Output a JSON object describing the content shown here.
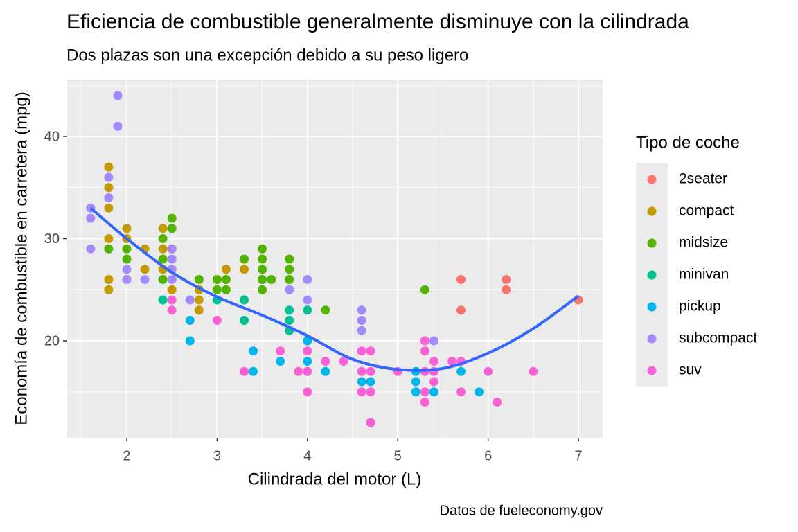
{
  "chart_data": {
    "type": "scatter",
    "title": "Eficiencia de combustible generalmente disminuye con la cilindrada",
    "subtitle": "Dos plazas son una excepción debido a su peso ligero",
    "caption": "Datos de fueleconomy.gov",
    "x_label": "Cilindrada del motor (L)",
    "y_label": "Economía de combustible en carretera (mpg)",
    "legend_title": "Tipo de coche",
    "legend_position": "right",
    "grid": true,
    "xlim": [
      1.333,
      7.268
    ],
    "ylim": [
      10.51,
      45.56
    ],
    "xticks": [
      2,
      3,
      4,
      5,
      6,
      7
    ],
    "yticks": [
      20,
      30,
      40
    ],
    "series": [
      {
        "name": "2seater",
        "color": "#F8766D",
        "x": [
          5.7,
          5.7,
          6.2,
          6.2,
          7.0
        ],
        "values": [
          26,
          23,
          26,
          25,
          24
        ]
      },
      {
        "name": "compact",
        "color": "#C49A00",
        "x": [
          1.8,
          1.8,
          1.8,
          1.8,
          1.8,
          1.8,
          2.0,
          2.0,
          2.0,
          2.2,
          2.2,
          2.4,
          2.4,
          2.4,
          2.5,
          2.5,
          2.5,
          2.8,
          2.8,
          2.8,
          3.0,
          3.1,
          3.3
        ],
        "values": [
          37,
          35,
          33,
          30,
          26,
          25,
          31,
          30,
          26,
          29,
          27,
          31,
          29,
          27,
          29,
          27,
          25,
          25,
          24,
          23,
          26,
          27,
          27
        ]
      },
      {
        "name": "midsize",
        "color": "#53B400",
        "x": [
          1.8,
          2.0,
          2.0,
          2.4,
          2.4,
          2.4,
          2.5,
          2.5,
          2.8,
          3.0,
          3.0,
          3.1,
          3.1,
          3.3,
          3.5,
          3.5,
          3.5,
          3.5,
          3.5,
          3.6,
          3.8,
          3.8,
          3.8,
          4.2,
          5.3
        ],
        "values": [
          29,
          29,
          28,
          30,
          28,
          26,
          32,
          31,
          26,
          26,
          25,
          26,
          25,
          28,
          29,
          28,
          27,
          26,
          25,
          26,
          28,
          27,
          26,
          23,
          25
        ]
      },
      {
        "name": "minivan",
        "color": "#00C094",
        "x": [
          2.4,
          3.0,
          3.3,
          3.3,
          3.8,
          3.8,
          3.8,
          4.0
        ],
        "values": [
          24,
          24,
          24,
          22,
          23,
          22,
          21,
          23
        ]
      },
      {
        "name": "pickup",
        "color": "#00B6EB",
        "x": [
          2.7,
          2.7,
          3.4,
          3.4,
          3.7,
          4.0,
          4.0,
          4.0,
          4.2,
          4.6,
          4.6,
          4.7,
          4.7,
          5.2,
          5.2,
          5.2,
          5.4,
          5.7,
          5.9
        ],
        "values": [
          22,
          20,
          19,
          17,
          18,
          20,
          18,
          17,
          17,
          17,
          16,
          16,
          12,
          17,
          16,
          15,
          15,
          17,
          15
        ]
      },
      {
        "name": "subcompact",
        "color": "#A58AFF",
        "x": [
          1.6,
          1.6,
          1.6,
          1.8,
          1.8,
          1.9,
          1.9,
          2.0,
          2.0,
          2.2,
          2.5,
          2.5,
          2.5,
          2.5,
          2.7,
          3.8,
          4.0,
          4.0,
          4.6,
          4.6,
          4.6,
          5.4
        ],
        "values": [
          33,
          32,
          29,
          36,
          34,
          44,
          41,
          27,
          26,
          26,
          29,
          28,
          27,
          26,
          24,
          25,
          26,
          24,
          23,
          22,
          21,
          20
        ]
      },
      {
        "name": "suv",
        "color": "#FB61D7",
        "x": [
          2.5,
          2.5,
          3.0,
          3.3,
          3.7,
          3.9,
          4.0,
          4.0,
          4.0,
          4.2,
          4.4,
          4.6,
          4.6,
          4.6,
          4.7,
          4.7,
          4.7,
          4.7,
          5.0,
          5.3,
          5.3,
          5.3,
          5.3,
          5.3,
          5.4,
          5.4,
          5.4,
          5.6,
          5.7,
          5.7,
          6.0,
          6.1,
          6.5
        ],
        "values": [
          24,
          23,
          22,
          17,
          19,
          17,
          19,
          17,
          15,
          18,
          18,
          19,
          17,
          15,
          19,
          17,
          15,
          12,
          17,
          20,
          19,
          17,
          15,
          14,
          18,
          17,
          16,
          18,
          18,
          15,
          17,
          14,
          17
        ]
      }
    ],
    "smooth": {
      "color": "#3366FF",
      "x": [
        1.6,
        2.0,
        2.5,
        3.0,
        3.5,
        4.0,
        4.5,
        5.0,
        5.5,
        6.0,
        6.5,
        7.0
      ],
      "values": [
        33,
        30,
        26.7,
        24.3,
        22.5,
        20.5,
        18.2,
        17.2,
        17.3,
        18.8,
        21.2,
        24.4
      ]
    }
  }
}
